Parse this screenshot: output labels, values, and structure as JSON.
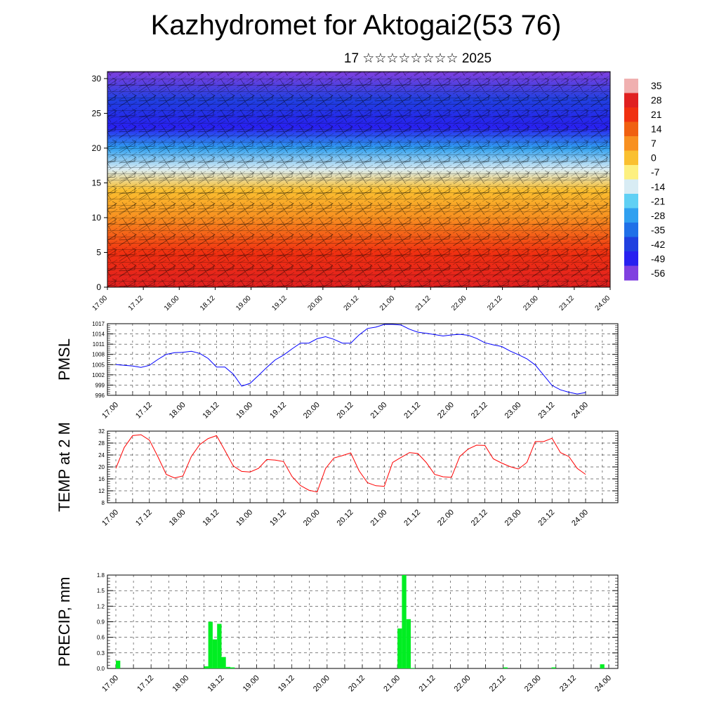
{
  "title": "Kazhydromet for Aktogai2(53 76)",
  "subtitle": "17 ☆☆☆☆☆☆☆☆ 2025",
  "time_labels": [
    "17.00",
    "17.12",
    "18.00",
    "18.12",
    "19.00",
    "19.12",
    "20.00",
    "20.12",
    "21.00",
    "21.12",
    "22.00",
    "22.12",
    "23.00",
    "23.12",
    "24.00"
  ],
  "chart_data": [
    {
      "type": "heatmap",
      "name": "temperature-height cross-section with wind barbs",
      "ylim": [
        0,
        31
      ],
      "yticks": [
        0,
        5,
        10,
        15,
        20,
        25,
        30
      ],
      "xticks": [
        "17.00",
        "17.12",
        "18.00",
        "18.12",
        "19.00",
        "19.12",
        "20.00",
        "20.12",
        "21.00",
        "21.12",
        "22.00",
        "22.12",
        "23.00",
        "23.12",
        "24.00"
      ],
      "colorbar": {
        "labels": [
          "35",
          "28",
          "21",
          "14",
          "7",
          "0",
          "-7",
          "-14",
          "-21",
          "-28",
          "-35",
          "-42",
          "-49",
          "-56"
        ],
        "colors": [
          "#f0b0b0",
          "#e02020",
          "#f03010",
          "#f06010",
          "#f89020",
          "#fac030",
          "#fdf080",
          "#d8ecf4",
          "#60d0f4",
          "#30a0f0",
          "#2070e8",
          "#2040e0",
          "#2820f0",
          "#8040e0"
        ]
      },
      "temperature_profile": [
        {
          "height": 0,
          "value": 28
        },
        {
          "height": 5,
          "value": 21
        },
        {
          "height": 10,
          "value": 10
        },
        {
          "height": 14,
          "value": 0
        },
        {
          "height": 17,
          "value": -14
        },
        {
          "height": 20,
          "value": -30
        },
        {
          "height": 23,
          "value": -50
        },
        {
          "height": 27,
          "value": -45
        },
        {
          "height": 31,
          "value": -53
        }
      ]
    },
    {
      "type": "line",
      "ylabel": "PMSL",
      "ylim": [
        996,
        1017
      ],
      "yticks": [
        996,
        999,
        1002,
        1005,
        1008,
        1011,
        1014,
        1017
      ],
      "color": "#0000ff",
      "x": [
        0,
        0.25,
        0.5,
        0.75,
        1,
        1.25,
        1.5,
        1.75,
        2,
        2.25,
        2.5,
        2.75,
        3,
        3.25,
        3.5,
        3.75,
        4,
        4.25,
        4.5,
        4.75,
        5,
        5.25,
        5.5,
        5.75,
        6,
        6.25,
        6.5,
        6.75,
        7,
        7.25,
        7.5,
        7.75,
        8,
        8.25,
        8.5,
        8.75,
        9,
        9.25,
        9.5,
        9.75,
        10,
        10.25,
        10.5,
        10.75,
        11,
        11.25,
        11.5,
        11.75,
        12,
        12.25,
        12.5,
        12.75,
        13,
        13.25,
        13.5,
        13.75,
        14
      ],
      "values": [
        1005,
        1004.8,
        1004.6,
        1004.2,
        1004.8,
        1006.5,
        1008,
        1008.5,
        1008.6,
        1008.9,
        1008.3,
        1006.8,
        1004.3,
        1004.3,
        1002.2,
        998.7,
        999.5,
        1001.8,
        1004.2,
        1006.4,
        1007.8,
        1009.6,
        1011.3,
        1011.3,
        1012.6,
        1013.2,
        1012.4,
        1011.3,
        1011.3,
        1013.7,
        1015.6,
        1016,
        1016.8,
        1016.8,
        1016.6,
        1015.4,
        1014.5,
        1014.2,
        1013.8,
        1013.4,
        1013.7,
        1013.9,
        1013.6,
        1012.7,
        1011.4,
        1010.8,
        1010.3,
        1009,
        1007.9,
        1006.7,
        1004.9,
        1001.9,
        998.9,
        997.6,
        996.9,
        996.4,
        996.8
      ]
    },
    {
      "type": "line",
      "ylabel": "TEMP at 2 M",
      "ylim": [
        8,
        32
      ],
      "yticks": [
        8,
        12,
        16,
        20,
        24,
        28,
        32
      ],
      "color": "#ff0000",
      "x": [
        0,
        0.25,
        0.5,
        0.75,
        1,
        1.25,
        1.5,
        1.75,
        2,
        2.25,
        2.5,
        2.75,
        3,
        3.25,
        3.5,
        3.75,
        4,
        4.25,
        4.5,
        4.75,
        5,
        5.25,
        5.5,
        5.75,
        6,
        6.25,
        6.5,
        6.75,
        7,
        7.25,
        7.5,
        7.75,
        8,
        8.25,
        8.5,
        8.75,
        9,
        9.25,
        9.5,
        9.75,
        10,
        10.25,
        10.5,
        10.75,
        11,
        11.25,
        11.5,
        11.75,
        12,
        12.25,
        12.5,
        12.75,
        13,
        13.25,
        13.5,
        13.75,
        14
      ],
      "values": [
        19.5,
        26.5,
        30.5,
        30.8,
        29,
        23.5,
        17.5,
        16.3,
        17,
        23.5,
        27.5,
        29.5,
        30.5,
        25.5,
        20.3,
        18.5,
        18.3,
        19.5,
        22.5,
        22.3,
        21.8,
        16.8,
        13.8,
        12.2,
        11.6,
        19.5,
        23,
        23.8,
        24.7,
        18.7,
        14.7,
        13.7,
        13.5,
        21.5,
        23.2,
        24.8,
        24.5,
        21.5,
        17.5,
        16.7,
        16.5,
        23.5,
        26,
        27.3,
        27.2,
        22.7,
        21.3,
        20.1,
        19.3,
        21.5,
        28.5,
        28.5,
        29.6,
        24.8,
        23.5,
        19.5,
        17.5
      ]
    },
    {
      "type": "bar",
      "ylabel": "PRECIP, mm",
      "ylim": [
        0,
        1.8
      ],
      "yticks": [
        "0.0",
        "0.3",
        "0.6",
        "0.9",
        "1.2",
        "1.5",
        "1.8"
      ],
      "color": "#00ee22",
      "x_start": [
        1.0,
        6.0,
        6.25,
        6.5,
        6.75,
        7.0,
        7.25,
        7.5,
        17.0,
        17.25,
        17.5,
        17.75,
        23.0,
        25.75,
        28.5
      ],
      "x_end": [
        1.25,
        6.25,
        6.5,
        6.75,
        7.0,
        7.25,
        7.5,
        7.75,
        17.25,
        17.5,
        17.75,
        18.0,
        23.25,
        26.0,
        28.75
      ],
      "values": [
        0.15,
        0.04,
        0.9,
        0.56,
        0.86,
        0.22,
        0.03,
        0.02,
        0.77,
        1.8,
        0.95,
        0.01,
        0.02,
        0.02,
        0.08
      ]
    }
  ]
}
